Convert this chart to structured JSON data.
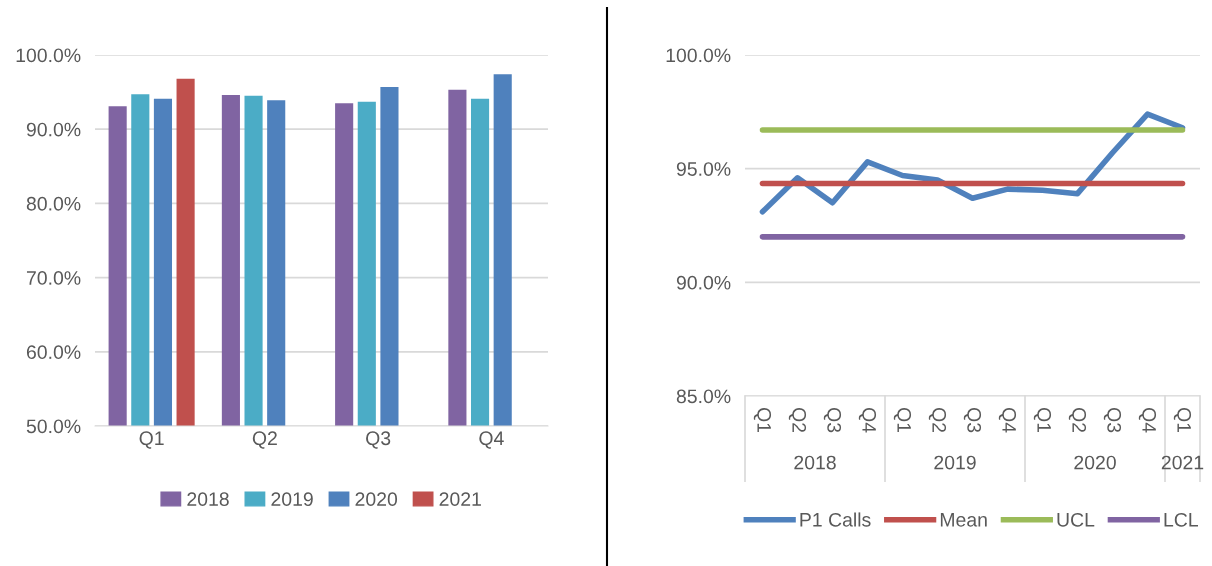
{
  "chart_data": [
    {
      "type": "bar",
      "categories": [
        "Q1",
        "Q2",
        "Q3",
        "Q4"
      ],
      "series": [
        {
          "name": "2018",
          "color": "#8064a2",
          "values": [
            93.1,
            94.6,
            93.5,
            95.3
          ]
        },
        {
          "name": "2019",
          "color": "#4bacc6",
          "values": [
            94.7,
            94.5,
            93.7,
            94.1
          ]
        },
        {
          "name": "2020",
          "color": "#4f81bd",
          "values": [
            94.1,
            93.9,
            95.7,
            97.4
          ]
        },
        {
          "name": "2021",
          "color": "#c0504d",
          "values": [
            96.8,
            null,
            null,
            null
          ]
        }
      ],
      "ylim": [
        50,
        100
      ],
      "yticks": [
        {
          "value": 50,
          "label": "50.0%"
        },
        {
          "value": 60,
          "label": "60.0%"
        },
        {
          "value": 70,
          "label": "70.0%"
        },
        {
          "value": 80,
          "label": "80.0%"
        },
        {
          "value": 90,
          "label": "90.0%"
        },
        {
          "value": 100,
          "label": "100.0%"
        }
      ],
      "grid": "y",
      "legend": "bottom"
    },
    {
      "type": "line",
      "categories": [
        "Q1",
        "Q2",
        "Q3",
        "Q4",
        "Q1",
        "Q2",
        "Q3",
        "Q4",
        "Q1",
        "Q2",
        "Q3",
        "Q4",
        "Q1"
      ],
      "annotations": [
        "2018",
        "2019",
        "2020",
        "2021"
      ],
      "series": [
        {
          "name": "P1 Calls",
          "color": "#4f81bd",
          "values": [
            93.1,
            94.6,
            93.5,
            95.3,
            94.7,
            94.5,
            93.7,
            94.1,
            94.05,
            93.9,
            95.7,
            97.4,
            96.8
          ]
        },
        {
          "name": "Mean",
          "color": "#c0504d",
          "values": [
            94.35,
            94.35,
            94.35,
            94.35,
            94.35,
            94.35,
            94.35,
            94.35,
            94.35,
            94.35,
            94.35,
            94.35,
            94.35
          ]
        },
        {
          "name": "UCL",
          "color": "#9bbb59",
          "values": [
            96.7,
            96.7,
            96.7,
            96.7,
            96.7,
            96.7,
            96.7,
            96.7,
            96.7,
            96.7,
            96.7,
            96.7,
            96.7
          ]
        },
        {
          "name": "LCL",
          "color": "#8064a2",
          "values": [
            92.0,
            92.0,
            92.0,
            92.0,
            92.0,
            92.0,
            92.0,
            92.0,
            92.0,
            92.0,
            92.0,
            92.0,
            92.0
          ]
        }
      ],
      "ylim": [
        85,
        100
      ],
      "yticks": [
        {
          "value": 85,
          "label": "85.0%"
        },
        {
          "value": 90,
          "label": "90.0%"
        },
        {
          "value": 95,
          "label": "95.0%"
        },
        {
          "value": 100,
          "label": "100.0%"
        }
      ],
      "grid": "y",
      "legend": "bottom",
      "marker": "none",
      "line_style": "solid"
    }
  ]
}
